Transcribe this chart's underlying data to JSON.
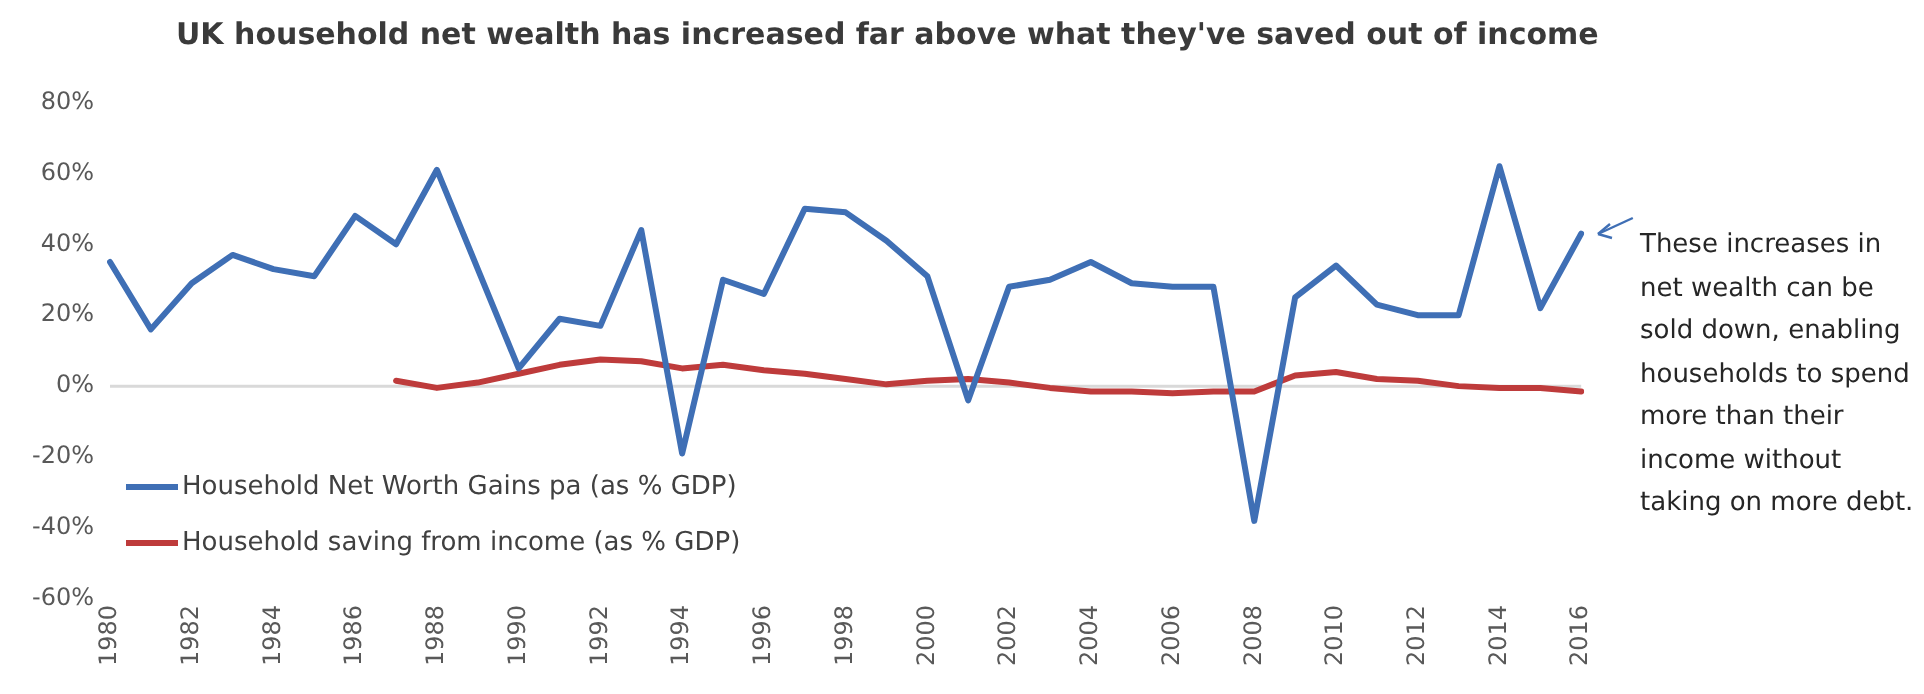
{
  "chart_data": {
    "type": "line",
    "title": "UK household net wealth has increased far above what they've saved out of income",
    "categories": [
      "1980",
      null,
      "1982",
      null,
      "1984",
      null,
      "1986",
      null,
      "1988",
      null,
      "1990",
      null,
      "1992",
      null,
      "1994",
      null,
      "1996",
      null,
      "1998",
      null,
      "2000",
      null,
      "2002",
      null,
      "2004",
      null,
      "2006",
      null,
      "2008",
      null,
      "2010",
      null,
      "2012",
      null,
      "2014",
      null,
      "2016"
    ],
    "series": [
      {
        "name": "Household Net Worth Gains pa (as % GDP)",
        "color": "#3f6fb5",
        "values": [
          35,
          16,
          29,
          37,
          33,
          31,
          48,
          40,
          61,
          33,
          5,
          19,
          17,
          44,
          -19,
          30,
          26,
          50,
          49,
          41,
          31,
          -4,
          28,
          30,
          35,
          29,
          28,
          28,
          -38,
          25,
          34,
          23,
          20,
          20,
          62,
          22,
          43
        ]
      },
      {
        "name": "Household saving from income (as % GDP)",
        "color": "#be3b3b",
        "values": [
          null,
          null,
          null,
          null,
          null,
          null,
          null,
          1.5,
          -0.5,
          1,
          3.5,
          6,
          7.5,
          7,
          5,
          6,
          4.5,
          3.5,
          2,
          0.5,
          1.5,
          2,
          1,
          -0.5,
          -1.5,
          -1.5,
          -2,
          -1.5,
          -1.5,
          3,
          4,
          2,
          1.5,
          0,
          -0.5,
          -0.5,
          -1.5
        ]
      }
    ],
    "ylim": [
      -60,
      80
    ],
    "yticks": [
      {
        "value": -60,
        "label": "-60%"
      },
      {
        "value": -40,
        "label": "-40%"
      },
      {
        "value": -20,
        "label": "-20%"
      },
      {
        "value": 0,
        "label": "0%"
      },
      {
        "value": 20,
        "label": "20%"
      },
      {
        "value": 40,
        "label": "40%"
      },
      {
        "value": 60,
        "label": "60%"
      },
      {
        "value": 80,
        "label": "80%"
      }
    ],
    "grid": false,
    "ref_lines": [
      {
        "axis": "y",
        "value": 0,
        "color": "#d9d9d9"
      }
    ],
    "legend": "bottom left",
    "marker": "none",
    "line_style": "solid",
    "annotations": [
      {
        "text": "These increases in net wealth can be sold down, enabling households to spend more than their income without taking on more debt.",
        "x": "2016",
        "y": 43
      }
    ]
  }
}
